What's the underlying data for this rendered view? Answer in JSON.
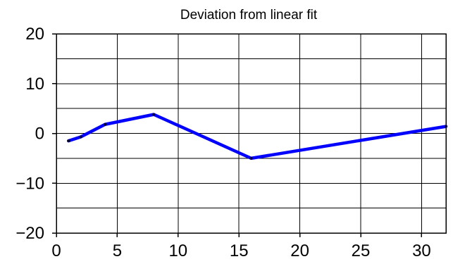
{
  "chart_data": {
    "type": "line",
    "title": "Deviation from linear fit",
    "xlabel": "",
    "ylabel": "",
    "xlim": [
      0,
      32
    ],
    "ylim": [
      -20,
      20
    ],
    "x_ticks": [
      0,
      5,
      10,
      15,
      20,
      25,
      30
    ],
    "y_ticks": [
      -20,
      -10,
      0,
      10,
      20
    ],
    "x_tick_labels": [
      "0",
      "5",
      "10",
      "15",
      "20",
      "25",
      "30"
    ],
    "y_tick_labels": [
      "−20",
      "−10",
      "0",
      "10",
      "20"
    ],
    "x_gridlines": [
      0,
      5,
      10,
      15,
      20,
      25,
      30,
      32
    ],
    "y_gridlines": [
      -20,
      -15,
      -10,
      -5,
      0,
      5,
      10,
      15,
      20
    ],
    "grid": true,
    "legend": "none",
    "series": [
      {
        "color": "#0000ff",
        "x": [
          1,
          2,
          4,
          8,
          16,
          32
        ],
        "y": [
          -1.5,
          -0.7,
          1.8,
          3.8,
          -5.0,
          1.4
        ]
      }
    ]
  }
}
